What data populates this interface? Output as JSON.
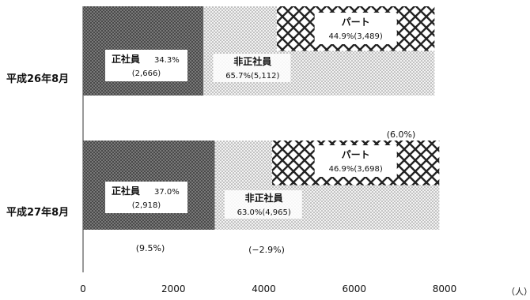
{
  "chart_data": {
    "type": "bar",
    "stacked": true,
    "orientation": "horizontal",
    "unit_label": "（人）",
    "categories": [
      "平成26年8月",
      "平成27年8月"
    ],
    "xlim": [
      0,
      8000
    ],
    "xticks": [
      0,
      2000,
      4000,
      6000,
      8000
    ],
    "series": [
      {
        "key": "seishain",
        "values": [
          2666,
          2918
        ],
        "color": "#3a3a3a",
        "pattern": "dense-dots"
      },
      {
        "key": "hiseishain_other",
        "values": [
          1623,
          1267
        ],
        "color": "#c8c8c8",
        "pattern": "light-dots"
      },
      {
        "key": "part",
        "values": [
          3489,
          3698
        ],
        "color": "#222222",
        "pattern": "crosshatch"
      }
    ],
    "bar_labels": [
      {
        "seishain": {
          "name": "正社員",
          "pct": "34.3%",
          "count": "(2,666)"
        },
        "hiseishain": {
          "name": "非正社員",
          "pct_count": "65.7%(5,112)"
        },
        "part": {
          "name": "パート",
          "pct_count": "44.9%(3,489)"
        }
      },
      {
        "seishain": {
          "name": "正社員",
          "pct": "37.0%",
          "count": "(2,918)"
        },
        "hiseishain": {
          "name": "非正社員",
          "pct_count": "63.0%(4,965)"
        },
        "part": {
          "name": "パート",
          "pct_count": "46.9%(3,698)"
        }
      }
    ],
    "change_annotations": {
      "seishain": "(9.5%)",
      "hiseishain": "(−2.9%)",
      "part": "(6.0%)"
    }
  }
}
